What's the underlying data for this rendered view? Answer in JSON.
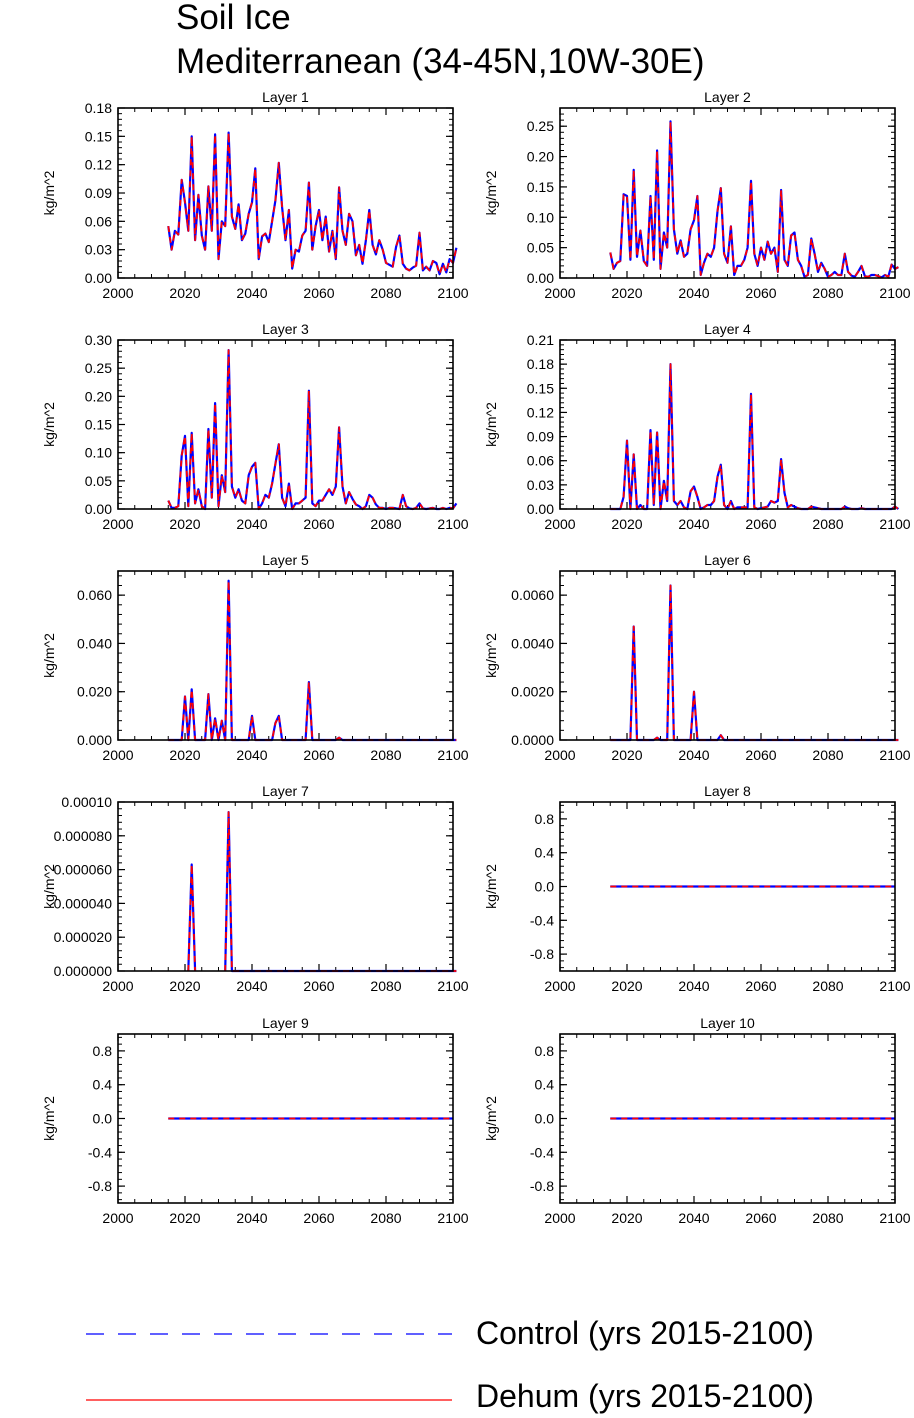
{
  "title": "Soil Ice",
  "subtitle": "Mediterranean (34-45N,10W-30E)",
  "legend": {
    "placement": "bottom",
    "entries": [
      {
        "name": "Control (yrs 2015-2100)",
        "color": "#0000ff",
        "style": "dashed"
      },
      {
        "name": "Dehum (yrs 2015-2100)",
        "color": "#ff0000",
        "style": "solid"
      }
    ]
  },
  "chart_data": [
    {
      "type": "line",
      "title": "Layer 1",
      "ylabel": "kg/m^2",
      "xlim": [
        2000,
        2100
      ],
      "ylim": [
        0,
        0.18
      ],
      "xticks": [
        "2000",
        "2020",
        "2040",
        "2060",
        "2080",
        "2100"
      ],
      "yticks": [
        "0.00",
        "0.03",
        "0.06",
        "0.09",
        "0.12",
        "0.15",
        "0.18"
      ],
      "x_start": 2015,
      "values": [
        0.055,
        0.03,
        0.05,
        0.046,
        0.104,
        0.08,
        0.05,
        0.15,
        0.04,
        0.088,
        0.045,
        0.03,
        0.097,
        0.05,
        0.152,
        0.02,
        0.06,
        0.055,
        0.154,
        0.065,
        0.052,
        0.078,
        0.04,
        0.047,
        0.068,
        0.08,
        0.116,
        0.02,
        0.044,
        0.047,
        0.038,
        0.06,
        0.082,
        0.122,
        0.075,
        0.04,
        0.072,
        0.01,
        0.03,
        0.028,
        0.045,
        0.05,
        0.101,
        0.03,
        0.055,
        0.072,
        0.04,
        0.065,
        0.028,
        0.05,
        0.02,
        0.096,
        0.05,
        0.035,
        0.068,
        0.06,
        0.024,
        0.035,
        0.015,
        0.04,
        0.072,
        0.035,
        0.025,
        0.04,
        0.03,
        0.016,
        0.014,
        0.012,
        0.033,
        0.045,
        0.015,
        0.01,
        0.008,
        0.011,
        0.013,
        0.048,
        0.008,
        0.012,
        0.008,
        0.018,
        0.016,
        0.004,
        0.015,
        0.006,
        0.02,
        0.016,
        0.032
      ]
    },
    {
      "type": "line",
      "title": "Layer 2",
      "ylabel": "kg/m^2",
      "xlim": [
        2000,
        2100
      ],
      "ylim": [
        0,
        0.28
      ],
      "xticks": [
        "2000",
        "2020",
        "2040",
        "2060",
        "2080",
        "2100"
      ],
      "yticks": [
        "0.00",
        "0.05",
        "0.10",
        "0.15",
        "0.20",
        "0.25"
      ],
      "x_start": 2015,
      "values": [
        0.042,
        0.015,
        0.025,
        0.028,
        0.138,
        0.135,
        0.03,
        0.178,
        0.035,
        0.078,
        0.028,
        0.02,
        0.135,
        0.03,
        0.21,
        0.015,
        0.075,
        0.05,
        0.258,
        0.08,
        0.04,
        0.062,
        0.035,
        0.04,
        0.08,
        0.095,
        0.135,
        0.005,
        0.025,
        0.04,
        0.035,
        0.05,
        0.11,
        0.148,
        0.04,
        0.025,
        0.085,
        0.005,
        0.02,
        0.02,
        0.03,
        0.05,
        0.16,
        0.04,
        0.02,
        0.05,
        0.03,
        0.06,
        0.04,
        0.05,
        0.01,
        0.145,
        0.03,
        0.02,
        0.07,
        0.075,
        0.03,
        0.02,
        0.002,
        0.005,
        0.065,
        0.04,
        0.01,
        0.025,
        0.015,
        0.002,
        0.005,
        0.01,
        0.005,
        0.005,
        0.04,
        0.01,
        0.004,
        0.002,
        0.01,
        0.02,
        0.003,
        0.002,
        0.005,
        0.005,
        0.003,
        0.001,
        0.005,
        0.002,
        0.022,
        0.015,
        0.018
      ]
    },
    {
      "type": "line",
      "title": "Layer 3",
      "ylabel": "kg/m^2",
      "xlim": [
        2000,
        2100
      ],
      "ylim": [
        0,
        0.3
      ],
      "xticks": [
        "2000",
        "2020",
        "2040",
        "2060",
        "2080",
        "2100"
      ],
      "yticks": [
        "0.00",
        "0.05",
        "0.10",
        "0.15",
        "0.20",
        "0.25",
        "0.30"
      ],
      "x_start": 2015,
      "values": [
        0.015,
        0.002,
        0.002,
        0.005,
        0.095,
        0.13,
        0.005,
        0.135,
        0.01,
        0.035,
        0.005,
        0.0,
        0.142,
        0.02,
        0.188,
        0.005,
        0.06,
        0.03,
        0.282,
        0.04,
        0.02,
        0.035,
        0.015,
        0.01,
        0.06,
        0.075,
        0.082,
        0.0,
        0.01,
        0.025,
        0.02,
        0.045,
        0.08,
        0.115,
        0.02,
        0.005,
        0.045,
        0.0,
        0.01,
        0.01,
        0.015,
        0.02,
        0.21,
        0.01,
        0.005,
        0.015,
        0.015,
        0.025,
        0.035,
        0.025,
        0.04,
        0.145,
        0.04,
        0.01,
        0.03,
        0.018,
        0.008,
        0.005,
        0.0,
        0.005,
        0.025,
        0.02,
        0.008,
        0.002,
        0.002,
        0.0,
        0.002,
        0.002,
        0.001,
        0.0,
        0.025,
        0.005,
        0.001,
        0.0,
        0.002,
        0.01,
        0.001,
        0.0,
        0.001,
        0.002,
        0.0,
        0.0,
        0.002,
        0.0,
        0.002,
        0.001,
        0.01
      ]
    },
    {
      "type": "line",
      "title": "Layer 4",
      "ylabel": "kg/m^2",
      "xlim": [
        2000,
        2100
      ],
      "ylim": [
        0,
        0.21
      ],
      "xticks": [
        "2000",
        "2020",
        "2040",
        "2060",
        "2080",
        "2100"
      ],
      "yticks": [
        "0.00",
        "0.03",
        "0.06",
        "0.09",
        "0.12",
        "0.15",
        "0.18",
        "0.21"
      ],
      "x_start": 2015,
      "values": [
        0.0,
        0.0,
        0.0,
        0.0,
        0.015,
        0.085,
        0.0,
        0.068,
        0.0,
        0.005,
        0.0,
        0.0,
        0.098,
        0.005,
        0.095,
        0.0,
        0.035,
        0.01,
        0.18,
        0.01,
        0.005,
        0.01,
        0.002,
        0.0,
        0.022,
        0.028,
        0.015,
        0.0,
        0.002,
        0.005,
        0.005,
        0.01,
        0.04,
        0.055,
        0.005,
        0.0,
        0.01,
        0.0,
        0.002,
        0.002,
        0.002,
        0.002,
        0.143,
        0.002,
        0.0,
        0.001,
        0.002,
        0.003,
        0.01,
        0.008,
        0.01,
        0.062,
        0.02,
        0.002,
        0.005,
        0.003,
        0.001,
        0.0,
        0.0,
        0.0,
        0.003,
        0.002,
        0.001,
        0.0,
        0.0,
        0.0,
        0.0,
        0.0,
        0.0,
        0.0,
        0.003,
        0.001,
        0.0,
        0.0,
        0.0,
        0.001,
        0.0,
        0.0,
        0.0,
        0.0,
        0.0,
        0.0,
        0.0,
        0.0,
        0.0,
        0.003,
        0.0
      ]
    },
    {
      "type": "line",
      "title": "Layer 5",
      "ylabel": "kg/m^2",
      "xlim": [
        2000,
        2100
      ],
      "ylim": [
        0,
        0.07
      ],
      "xticks": [
        "2000",
        "2020",
        "2040",
        "2060",
        "2080",
        "2100"
      ],
      "yticks": [
        "0.000",
        "0.020",
        "0.040",
        "0.060"
      ],
      "x_start": 2015,
      "values": [
        0,
        0,
        0,
        0,
        0,
        0.018,
        0,
        0.021,
        0,
        0,
        0,
        0,
        0.019,
        0,
        0.009,
        0,
        0.008,
        0,
        0.066,
        0,
        0,
        0,
        0,
        0,
        0,
        0.01,
        0,
        0,
        0,
        0,
        0,
        0,
        0.007,
        0.01,
        0,
        0,
        0,
        0,
        0,
        0,
        0,
        0,
        0.024,
        0,
        0,
        0,
        0,
        0,
        0,
        0,
        0,
        0.001,
        0,
        0,
        0,
        0,
        0,
        0,
        0,
        0,
        0,
        0,
        0,
        0,
        0,
        0,
        0,
        0,
        0,
        0,
        0,
        0,
        0,
        0,
        0,
        0,
        0,
        0,
        0,
        0,
        0,
        0,
        0,
        0,
        0,
        0,
        0
      ]
    },
    {
      "type": "line",
      "title": "Layer 6",
      "ylabel": "kg/m^2",
      "xlim": [
        2000,
        2100
      ],
      "ylim": [
        0,
        0.007
      ],
      "xticks": [
        "2000",
        "2020",
        "2040",
        "2060",
        "2080",
        "2100"
      ],
      "yticks": [
        "0.0000",
        "0.0020",
        "0.0040",
        "0.0060"
      ],
      "x_start": 2015,
      "values": [
        0,
        0,
        0,
        0,
        0,
        0,
        0,
        0.0047,
        0,
        0,
        0,
        0,
        0,
        0,
        0.0001,
        0,
        0,
        0,
        0.0064,
        0,
        0,
        0,
        0,
        0,
        0,
        0.002,
        0,
        0,
        0,
        0,
        0,
        0,
        0,
        0.0002,
        0,
        0,
        0,
        0,
        0,
        0,
        0,
        0,
        0,
        0,
        0,
        0,
        0,
        0,
        0,
        0,
        0,
        0,
        0,
        0,
        0,
        0,
        0,
        0,
        0,
        0,
        0,
        0,
        0,
        0,
        0,
        0,
        0,
        0,
        0,
        0,
        0,
        0,
        0,
        0,
        0,
        0,
        0,
        0,
        0,
        0,
        0,
        0,
        0,
        0,
        0,
        0,
        0
      ]
    },
    {
      "type": "line",
      "title": "Layer 7",
      "ylabel": "kg/m^2",
      "xlim": [
        2000,
        2100
      ],
      "ylim": [
        0,
        0.0001
      ],
      "xticks": [
        "2000",
        "2020",
        "2040",
        "2060",
        "2080",
        "2100"
      ],
      "yticks": [
        "0.000000",
        "0.000020",
        "0.000040",
        "0.000060",
        "0.000080",
        "0.00010"
      ],
      "x_start": 2015,
      "values": [
        null,
        null,
        null,
        null,
        null,
        null,
        0,
        6.3e-05,
        0,
        null,
        null,
        null,
        null,
        null,
        null,
        null,
        null,
        0,
        9.4e-05,
        0,
        0,
        0,
        0,
        0,
        0,
        0,
        0,
        0,
        0,
        0,
        0,
        0,
        0,
        0,
        0,
        0,
        0,
        0,
        0,
        0,
        0,
        0,
        0,
        0,
        0,
        0,
        0,
        0,
        0,
        0,
        0,
        0,
        0,
        0,
        0,
        0,
        0,
        0,
        0,
        0,
        0,
        0,
        0,
        0,
        0,
        0,
        0,
        0,
        0,
        0,
        0,
        0,
        0,
        0,
        0,
        0,
        0,
        0,
        0,
        0,
        0,
        0,
        0,
        0,
        0,
        0,
        0
      ]
    },
    {
      "type": "line",
      "title": "Layer 8",
      "ylabel": "kg/m^2",
      "xlim": [
        2000,
        2100
      ],
      "ylim": [
        -1,
        1
      ],
      "xticks": [
        "2000",
        "2020",
        "2040",
        "2060",
        "2080",
        "2100"
      ],
      "yticks": [
        "-0.8",
        "-0.4",
        "0.0",
        "0.4",
        "0.8"
      ],
      "x_start": 2015,
      "constant": 0
    },
    {
      "type": "line",
      "title": "Layer 9",
      "ylabel": "kg/m^2",
      "xlim": [
        2000,
        2100
      ],
      "ylim": [
        -1,
        1
      ],
      "xticks": [
        "2000",
        "2020",
        "2040",
        "2060",
        "2080",
        "2100"
      ],
      "yticks": [
        "-0.8",
        "-0.4",
        "0.0",
        "0.4",
        "0.8"
      ],
      "x_start": 2015,
      "constant": 0
    },
    {
      "type": "line",
      "title": "Layer 10",
      "ylabel": "kg/m^2",
      "xlim": [
        2000,
        2100
      ],
      "ylim": [
        -1,
        1
      ],
      "xticks": [
        "2000",
        "2020",
        "2040",
        "2060",
        "2080",
        "2100"
      ],
      "yticks": [
        "-0.8",
        "-0.4",
        "0.0",
        "0.4",
        "0.8"
      ],
      "x_start": 2015,
      "constant": 0
    }
  ]
}
